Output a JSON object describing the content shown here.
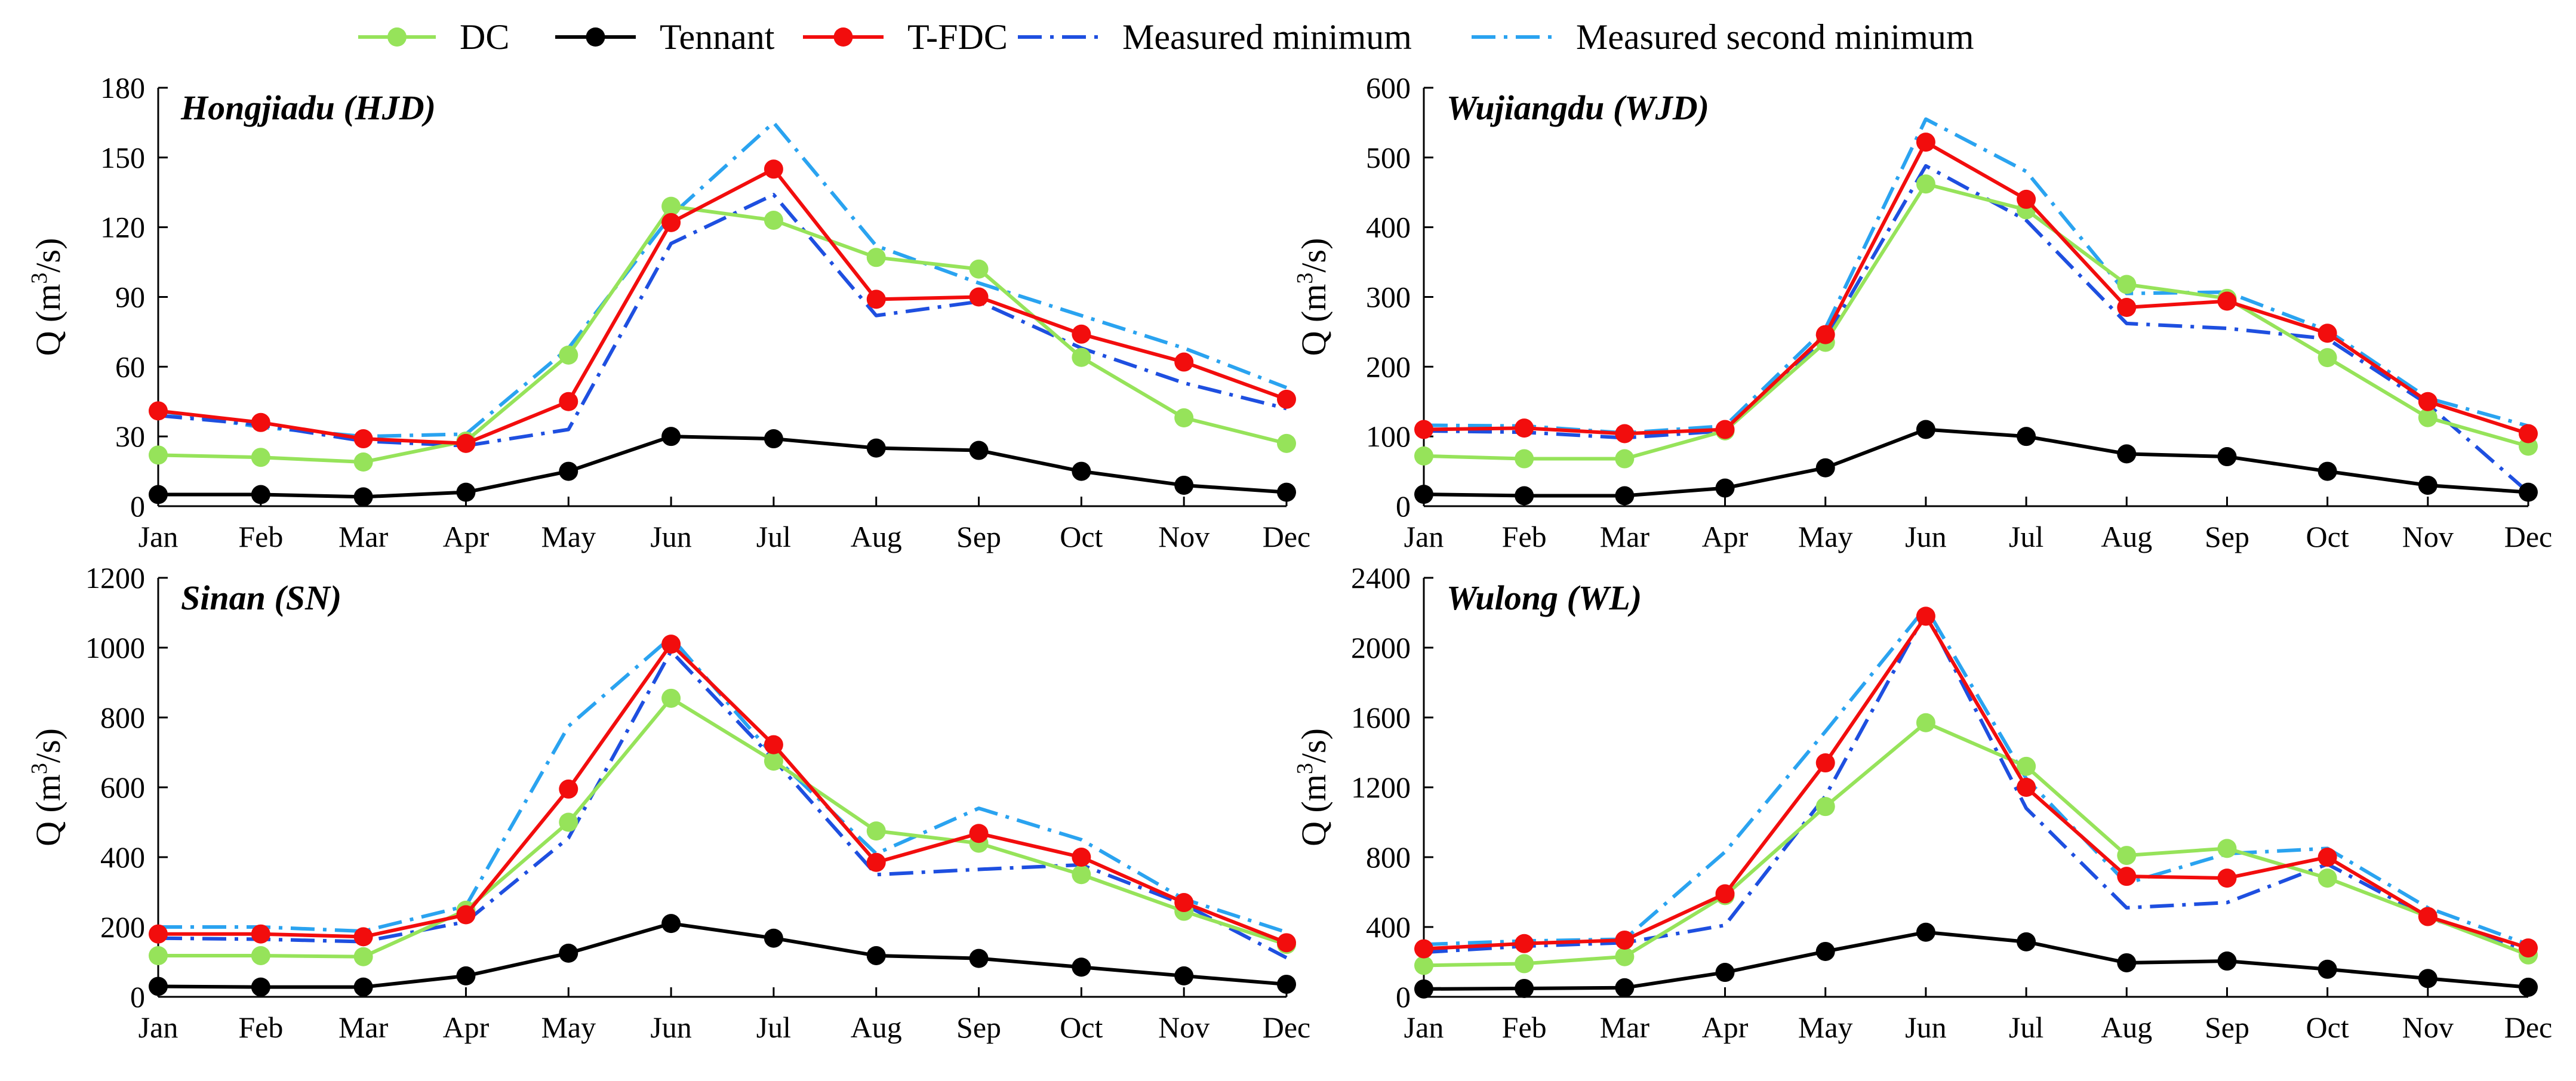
{
  "legend": [
    {
      "key": "dc",
      "label": "DC",
      "color": "#96E35A",
      "style": "line-marker"
    },
    {
      "key": "tennant",
      "label": "Tennant",
      "color": "#000000",
      "style": "line-marker"
    },
    {
      "key": "tfdc",
      "label": "T-FDC",
      "color": "#F20D0D",
      "style": "line-marker"
    },
    {
      "key": "measured_min",
      "label": "Measured minimum",
      "color": "#1E4FE0",
      "style": "dash-dot"
    },
    {
      "key": "measured_second_min",
      "label": "Measured second minimum",
      "color": "#2AA3F0",
      "style": "dash-dot"
    }
  ],
  "chart_data": [
    {
      "type": "line",
      "title": "Hongjiadu (HJD)",
      "ylabel": "Q (m3/s)",
      "ylim": [
        0,
        180
      ],
      "yticks": [
        0,
        30,
        60,
        90,
        120,
        150,
        180
      ],
      "categories": [
        "Jan",
        "Feb",
        "Mar",
        "Apr",
        "May",
        "Jun",
        "Jul",
        "Aug",
        "Sep",
        "Oct",
        "Nov",
        "Dec"
      ],
      "series": [
        {
          "key": "measured_second_min",
          "name": "Measured second minimum",
          "values": [
            41,
            34,
            30,
            31,
            68,
            125,
            165,
            112,
            96,
            82,
            68,
            51
          ]
        },
        {
          "key": "measured_min",
          "name": "Measured minimum",
          "values": [
            39,
            35,
            28,
            26,
            33,
            113,
            134,
            82,
            88,
            68,
            53,
            42
          ]
        },
        {
          "key": "dc",
          "name": "DC",
          "values": [
            22,
            21,
            19,
            28,
            65,
            129,
            123,
            107,
            102,
            64,
            38,
            27
          ]
        },
        {
          "key": "tennant",
          "name": "Tennant",
          "values": [
            5,
            5,
            4,
            6,
            15,
            30,
            29,
            25,
            24,
            15,
            9,
            6
          ]
        },
        {
          "key": "tfdc",
          "name": "T-FDC",
          "values": [
            41,
            36,
            29,
            27,
            45,
            122,
            145,
            89,
            90,
            74,
            62,
            46
          ]
        }
      ]
    },
    {
      "type": "line",
      "title": "Wujiangdu (WJD)",
      "ylabel": "Q (m3/s)",
      "ylim": [
        0,
        600
      ],
      "yticks": [
        0,
        100,
        200,
        300,
        400,
        500,
        600
      ],
      "categories": [
        "Jan",
        "Feb",
        "Mar",
        "Apr",
        "May",
        "Jun",
        "Jul",
        "Aug",
        "Sep",
        "Oct",
        "Nov",
        "Dec"
      ],
      "series": [
        {
          "key": "measured_second_min",
          "name": "Measured second minimum",
          "values": [
            116,
            115,
            105,
            115,
            255,
            555,
            480,
            305,
            307,
            252,
            155,
            115
          ]
        },
        {
          "key": "measured_min",
          "name": "Measured minimum",
          "values": [
            108,
            106,
            98,
            108,
            240,
            488,
            410,
            262,
            255,
            240,
            146,
            20
          ]
        },
        {
          "key": "dc",
          "name": "DC",
          "values": [
            72,
            68,
            68,
            108,
            235,
            462,
            425,
            318,
            298,
            213,
            127,
            86
          ]
        },
        {
          "key": "tennant",
          "name": "Tennant",
          "values": [
            17,
            15,
            15,
            26,
            55,
            110,
            100,
            75,
            71,
            50,
            30,
            20
          ]
        },
        {
          "key": "tfdc",
          "name": "T-FDC",
          "values": [
            110,
            112,
            104,
            110,
            246,
            522,
            440,
            285,
            294,
            248,
            150,
            104
          ]
        }
      ]
    },
    {
      "type": "line",
      "title": "Sinan (SN)",
      "ylabel": "Q (m3/s)",
      "ylim": [
        0,
        1200
      ],
      "yticks": [
        0,
        200,
        400,
        600,
        800,
        1000,
        1200
      ],
      "categories": [
        "Jan",
        "Feb",
        "Mar",
        "Apr",
        "May",
        "Jun",
        "Jul",
        "Aug",
        "Sep",
        "Oct",
        "Nov",
        "Dec"
      ],
      "series": [
        {
          "key": "measured_second_min",
          "name": "Measured second minimum",
          "values": [
            200,
            200,
            188,
            260,
            775,
            1030,
            690,
            410,
            540,
            450,
            280,
            185
          ]
        },
        {
          "key": "measured_min",
          "name": "Measured minimum",
          "values": [
            168,
            165,
            158,
            215,
            455,
            990,
            680,
            350,
            365,
            378,
            265,
            112
          ]
        },
        {
          "key": "dc",
          "name": "DC",
          "values": [
            118,
            118,
            115,
            248,
            500,
            855,
            675,
            475,
            440,
            350,
            245,
            150
          ]
        },
        {
          "key": "tennant",
          "name": "Tennant",
          "values": [
            30,
            28,
            28,
            60,
            125,
            210,
            168,
            118,
            110,
            85,
            60,
            36
          ]
        },
        {
          "key": "tfdc",
          "name": "T-FDC",
          "values": [
            180,
            180,
            172,
            235,
            595,
            1010,
            722,
            385,
            468,
            400,
            270,
            155
          ]
        }
      ]
    },
    {
      "type": "line",
      "title": "Wulong (WL)",
      "ylabel": "Q (m3/s)",
      "ylim": [
        0,
        2400
      ],
      "yticks": [
        0,
        400,
        800,
        1200,
        1600,
        2000,
        2400
      ],
      "categories": [
        "Jan",
        "Feb",
        "Mar",
        "Apr",
        "May",
        "Jun",
        "Jul",
        "Aug",
        "Sep",
        "Oct",
        "Nov",
        "Dec"
      ],
      "series": [
        {
          "key": "measured_second_min",
          "name": "Measured second minimum",
          "values": [
            300,
            320,
            330,
            830,
            1520,
            2230,
            1250,
            650,
            820,
            850,
            510,
            300
          ]
        },
        {
          "key": "measured_min",
          "name": "Measured minimum",
          "values": [
            255,
            290,
            310,
            410,
            1150,
            2200,
            1080,
            510,
            540,
            760,
            455,
            265
          ]
        },
        {
          "key": "dc",
          "name": "DC",
          "values": [
            180,
            190,
            230,
            580,
            1090,
            1570,
            1320,
            810,
            850,
            680,
            460,
            240
          ]
        },
        {
          "key": "tennant",
          "name": "Tennant",
          "values": [
            45,
            48,
            52,
            140,
            260,
            370,
            315,
            195,
            205,
            158,
            105,
            55
          ]
        },
        {
          "key": "tfdc",
          "name": "T-FDC",
          "values": [
            275,
            305,
            325,
            590,
            1340,
            2180,
            1200,
            690,
            680,
            800,
            460,
            280
          ]
        }
      ]
    }
  ]
}
